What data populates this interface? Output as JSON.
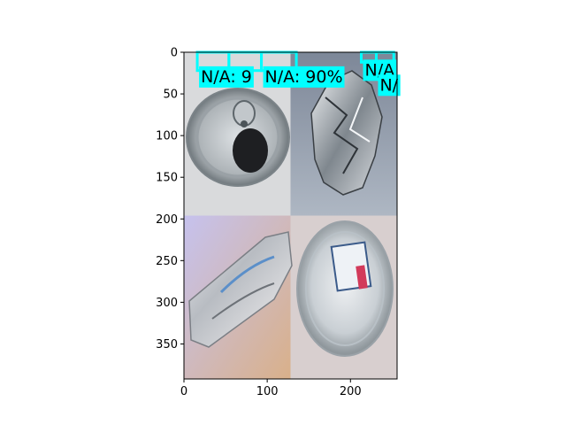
{
  "chart_data": {
    "type": "image-with-detections",
    "xlim": [
      0,
      256
    ],
    "ylim": [
      392,
      0
    ],
    "x_ticks": [
      {
        "value": 0,
        "label": "0"
      },
      {
        "value": 100,
        "label": "100"
      },
      {
        "value": 200,
        "label": "200"
      }
    ],
    "y_ticks": [
      {
        "value": 0,
        "label": "0"
      },
      {
        "value": 50,
        "label": "50"
      },
      {
        "value": 100,
        "label": "100"
      },
      {
        "value": 150,
        "label": "150"
      },
      {
        "value": 200,
        "label": "200"
      },
      {
        "value": 250,
        "label": "250"
      },
      {
        "value": 300,
        "label": "300"
      },
      {
        "value": 350,
        "label": "350"
      }
    ],
    "tiles": [
      {
        "name": "can-top-tile",
        "object": "can-top",
        "x": [
          0,
          128
        ],
        "y": [
          0,
          196
        ],
        "bg": "#d9dadc"
      },
      {
        "name": "foil-tile",
        "object": "foil",
        "x": [
          128,
          256
        ],
        "y": [
          0,
          196
        ],
        "bg": "#8e9aa8"
      },
      {
        "name": "crushed-can-tile",
        "object": "crushed-can",
        "x": [
          0,
          128
        ],
        "y": [
          196,
          392
        ],
        "bg": "#c9c7e4"
      },
      {
        "name": "plastic-lid-tile",
        "object": "plastic-lid",
        "x": [
          128,
          256
        ],
        "y": [
          196,
          392
        ],
        "bg": "#d8cfcf"
      }
    ],
    "detections": [
      {
        "x": [
          16,
          54
        ],
        "y": [
          0,
          22
        ],
        "label": "N/A: 9",
        "label_y": 36
      },
      {
        "x": [
          54,
          93
        ],
        "y": [
          0,
          22
        ],
        "label": "",
        "label_y": 36
      },
      {
        "x": [
          93,
          135
        ],
        "y": [
          0,
          22
        ],
        "label": "N/A: 90%",
        "label_y": 36
      },
      {
        "x": [
          213,
          231
        ],
        "y": [
          0,
          12
        ],
        "label": "N/A",
        "label_y": 28
      },
      {
        "x": [
          231,
          252
        ],
        "y": [
          0,
          12
        ],
        "label": "N/",
        "label_y": 46
      }
    ],
    "box_color": "#00ffff"
  }
}
